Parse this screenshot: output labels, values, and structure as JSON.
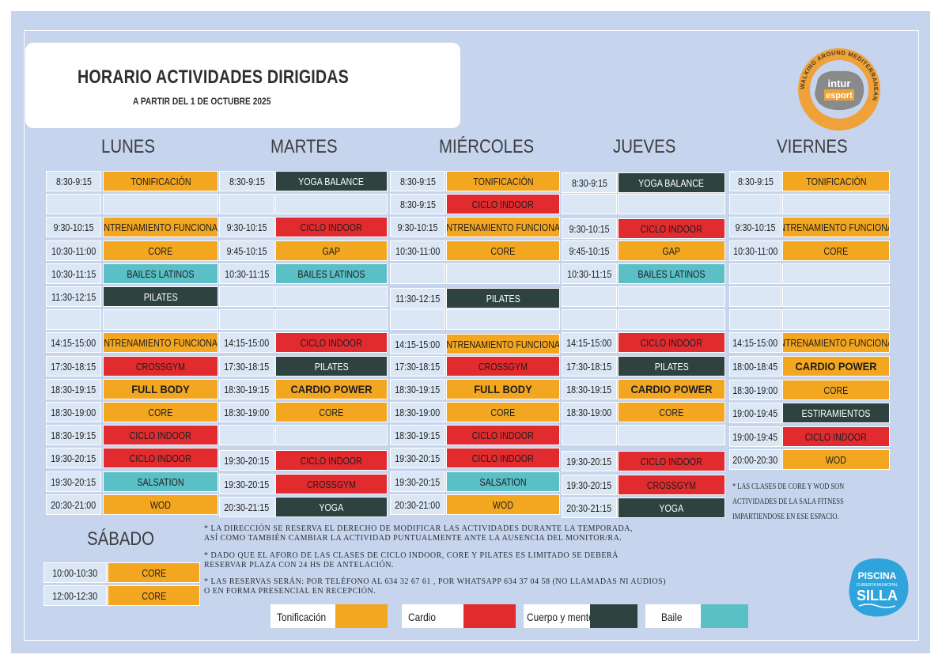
{
  "header": {
    "title": "HORARIO ACTIVIDADES DIRIGIDAS",
    "subtitle": "A PARTIR DEL 1 DE  OCTUBRE  2025"
  },
  "brand": {
    "ring_text": "WALKING AROUND MEDITERRANEAN",
    "logo_line1": "intur",
    "logo_line2": "esport"
  },
  "days": [
    "LUNES",
    "MARTES",
    "MIÉRCOLES",
    "JUEVES",
    "VIERNES"
  ],
  "legend": [
    {
      "label": "Tonificación",
      "color": "#f3a620"
    },
    {
      "label": "Cardio",
      "color": "#e12b2f"
    },
    {
      "label": "Cuerpo y mente",
      "color": "#2e4340"
    },
    {
      "label": "Baile",
      "color": "#5bbfc6"
    }
  ],
  "schedule": {
    "lunes": [
      {
        "time": "8:30-9:15",
        "activity": "TONIFICACIÓN",
        "cat": "T"
      },
      {
        "time": "",
        "activity": "",
        "cat": ""
      },
      {
        "time": "9:30-10:15",
        "activity": "ENTRENAMIENTO FUNCIONAL",
        "cat": "T"
      },
      {
        "time": "10:30-11:00",
        "activity": "CORE",
        "cat": "T"
      },
      {
        "time": "10:30-11:15",
        "activity": "BAILES LATINOS",
        "cat": "B"
      },
      {
        "time": "11:30-12:15",
        "activity": "PILATES",
        "cat": "M"
      },
      {
        "time": "",
        "activity": "",
        "cat": ""
      },
      {
        "time": "14:15-15:00",
        "activity": "ENTRENAMIENTO FUNCIONAL",
        "cat": "T"
      },
      {
        "time": "17:30-18:15",
        "activity": "CROSSGYM",
        "cat": "C"
      },
      {
        "time": "18:30-19:15",
        "activity": "FULL BODY",
        "cat": "T",
        "big": true
      },
      {
        "time": "18:30-19:00",
        "activity": "CORE",
        "cat": "T"
      },
      {
        "time": "18:30-19:15",
        "activity": "CICLO INDOOR",
        "cat": "C"
      },
      {
        "time": "19:30-20:15",
        "activity": "CICLO INDOOR",
        "cat": "C"
      },
      {
        "time": "19:30-20:15",
        "activity": "SALSATION",
        "cat": "B"
      },
      {
        "time": "20:30-21:00",
        "activity": "WOD",
        "cat": "T"
      }
    ],
    "martes": [
      {
        "time": "8:30-9:15",
        "activity": "YOGA BALANCE",
        "cat": "M"
      },
      {
        "time": "",
        "activity": "",
        "cat": ""
      },
      {
        "time": "9:30-10:15",
        "activity": "CICLO INDOOR",
        "cat": "C"
      },
      {
        "time": "9:45-10:15",
        "activity": "GAP",
        "cat": "T"
      },
      {
        "time": "10:30-11:15",
        "activity": "BAILES LATINOS",
        "cat": "B"
      },
      {
        "time": "",
        "activity": "",
        "cat": ""
      },
      {
        "time": "",
        "activity": "",
        "cat": ""
      },
      {
        "time": "14:15-15:00",
        "activity": "CICLO INDOOR",
        "cat": "C"
      },
      {
        "time": "17:30-18:15",
        "activity": "PILATES",
        "cat": "M"
      },
      {
        "time": "18:30-19:15",
        "activity": "CARDIO POWER",
        "cat": "T",
        "big": true
      },
      {
        "time": "18:30-19:00",
        "activity": "CORE",
        "cat": "T"
      },
      {
        "time": "",
        "activity": "",
        "cat": ""
      },
      {
        "time": "19:30-20:15",
        "activity": "CICLO INDOOR",
        "cat": "C"
      },
      {
        "time": "19:30-20:15",
        "activity": "CROSSGYM",
        "cat": "C"
      },
      {
        "time": "20:30-21:15",
        "activity": "YOGA",
        "cat": "M"
      }
    ],
    "miercoles": [
      {
        "time": "8:30-9:15",
        "activity": "TONIFICACIÓN",
        "cat": "T"
      },
      {
        "time": "8:30-9:15",
        "activity": "CICLO INDOOR",
        "cat": "C"
      },
      {
        "time": "9:30-10:15",
        "activity": "ENTRENAMIENTO FUNCIONAL",
        "cat": "T"
      },
      {
        "time": "10:30-11:00",
        "activity": "CORE",
        "cat": "T"
      },
      {
        "time": "",
        "activity": "",
        "cat": ""
      },
      {
        "time": "11:30-12:15",
        "activity": "PILATES",
        "cat": "M"
      },
      {
        "time": "",
        "activity": "",
        "cat": ""
      },
      {
        "time": "14:15-15:00",
        "activity": "ENTRENAMIENTO FUNCIONAL",
        "cat": "T"
      },
      {
        "time": "17:30-18:15",
        "activity": "CROSSGYM",
        "cat": "C"
      },
      {
        "time": "18:30-19:15",
        "activity": "FULL BODY",
        "cat": "T",
        "big": true
      },
      {
        "time": "18:30-19:00",
        "activity": "CORE",
        "cat": "T"
      },
      {
        "time": "18:30-19:15",
        "activity": "CICLO INDOOR",
        "cat": "C"
      },
      {
        "time": "19:30-20:15",
        "activity": "CICLO INDOOR",
        "cat": "C"
      },
      {
        "time": "19:30-20:15",
        "activity": "SALSATION",
        "cat": "B"
      },
      {
        "time": "20:30-21:00",
        "activity": "WOD",
        "cat": "T"
      }
    ],
    "jueves": [
      {
        "time": "8:30-9:15",
        "activity": "YOGA BALANCE",
        "cat": "M"
      },
      {
        "time": "",
        "activity": "",
        "cat": ""
      },
      {
        "time": "9:30-10:15",
        "activity": "CICLO INDOOR",
        "cat": "C"
      },
      {
        "time": "9:45-10:15",
        "activity": "GAP",
        "cat": "T"
      },
      {
        "time": "10:30-11:15",
        "activity": "BAILES LATINOS",
        "cat": "B"
      },
      {
        "time": "",
        "activity": "",
        "cat": ""
      },
      {
        "time": "",
        "activity": "",
        "cat": ""
      },
      {
        "time": "14:15-15:00",
        "activity": "CICLO INDOOR",
        "cat": "C"
      },
      {
        "time": "17:30-18:15",
        "activity": "PILATES",
        "cat": "M"
      },
      {
        "time": "18:30-19:15",
        "activity": "CARDIO POWER",
        "cat": "T",
        "big": true
      },
      {
        "time": "18:30-19:00",
        "activity": "CORE",
        "cat": "T"
      },
      {
        "time": "",
        "activity": "",
        "cat": ""
      },
      {
        "time": "19:30-20:15",
        "activity": "CICLO INDOOR",
        "cat": "C"
      },
      {
        "time": "19:30-20:15",
        "activity": "CROSSGYM",
        "cat": "C"
      },
      {
        "time": "20:30-21:15",
        "activity": "YOGA",
        "cat": "M"
      }
    ],
    "viernes": [
      {
        "time": "8:30-9:15",
        "activity": "TONIFICACIÓN",
        "cat": "T"
      },
      {
        "time": "",
        "activity": "",
        "cat": ""
      },
      {
        "time": "9:30-10:15",
        "activity": "ENTRENAMIENTO FUNCIONAL",
        "cat": "T"
      },
      {
        "time": "10:30-11:00",
        "activity": "CORE",
        "cat": "T"
      },
      {
        "time": "",
        "activity": "",
        "cat": ""
      },
      {
        "time": "",
        "activity": "",
        "cat": ""
      },
      {
        "time": "",
        "activity": "",
        "cat": ""
      },
      {
        "time": "14:15-15:00",
        "activity": "ENTRENAMIENTO FUNCIONAL",
        "cat": "T"
      },
      {
        "time": "18:00-18:45",
        "activity": "CARDIO POWER",
        "cat": "T",
        "big": true
      },
      {
        "time": "18:30-19:00",
        "activity": "CORE",
        "cat": "T"
      },
      {
        "time": "19:00-19:45",
        "activity": "ESTIRAMIENTOS",
        "cat": "M"
      },
      {
        "time": "19:00-19:45",
        "activity": "CICLO INDOOR",
        "cat": "C"
      },
      {
        "time": "20:00-20:30",
        "activity": "WOD",
        "cat": "T"
      }
    ]
  },
  "saturday": {
    "title": "SÁBADO",
    "rows": [
      {
        "time": "10:00-10:30",
        "activity": "CORE",
        "cat": "T"
      },
      {
        "time": "12:00-12:30",
        "activity": "CORE",
        "cat": "T"
      }
    ]
  },
  "fitness_note": "* LAS CLASES DE CORE Y WOD SON  ACTIVIDADES DE LA SALA FITNESS IMPARTIENDOSE EN ESE ESPACIO.",
  "notes": [
    [
      "* LA DIRECCIÓN SE RESERVA EL DERECHO DE MODIFICAR LAS ACTIVIDADES DURANTE LA TEMPORADA,",
      "  ASÍ COMO TAMBIÉN CAMBIAR LA ACTIVIDAD PUNTUALMENTE ANTE LA AUSENCIA DEL MONITOR/RA."
    ],
    [
      "* DADO QUE EL AFORO DE LAS CLASES DE CICLO INDOOR, CORE Y PILATES ES LIMITADO SE DEBERÁ",
      "RESERVAR PLAZA CON 24 HS DE ANTELACIÓN."
    ],
    [
      "* LAS RESERVAS SERÁN: POR TELÉFONO AL 634 32 67 61 , POR WHATSAPP 634 37 04 58 (NO LLAMADAS NI AUDIOS)",
      "  O EN FORMA PRESENCIAL EN RECEPCIÓN."
    ]
  ],
  "pool_logo": {
    "line1": "PISCINA",
    "line2": "CUBIERTA MUNICIPAL",
    "line3": "SILLA"
  }
}
